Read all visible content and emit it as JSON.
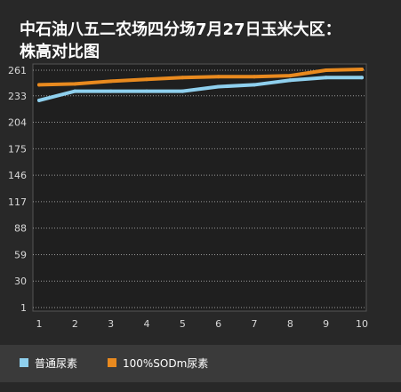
{
  "colors": {
    "background": "#282828",
    "plot_background": "#1f1f1f",
    "legend_background": "#3a3a3a",
    "grid": "#9a9a9a",
    "text": "#ffffff"
  },
  "chart_data": {
    "type": "line",
    "title_lines": [
      "中石油八五二农场四分场7月27日玉米大区：",
      "株高对比图"
    ],
    "xlabel": "",
    "ylabel": "",
    "x": [
      1,
      2,
      3,
      4,
      5,
      6,
      7,
      8,
      9,
      10
    ],
    "y_ticks": [
      1,
      30,
      59,
      88,
      117,
      146,
      175,
      204,
      233,
      261
    ],
    "ylim": [
      1,
      261
    ],
    "grid": true,
    "legend_position": "bottom-left",
    "series": [
      {
        "name": "普通尿素",
        "color": "#8fd0ee",
        "values": [
          228,
          238,
          238,
          238,
          238,
          243,
          245,
          250,
          253,
          253
        ]
      },
      {
        "name": "100%SODm尿素",
        "color": "#e98a1f",
        "values": [
          245,
          246,
          249,
          251,
          253,
          254,
          254,
          255,
          261,
          262
        ]
      }
    ]
  }
}
